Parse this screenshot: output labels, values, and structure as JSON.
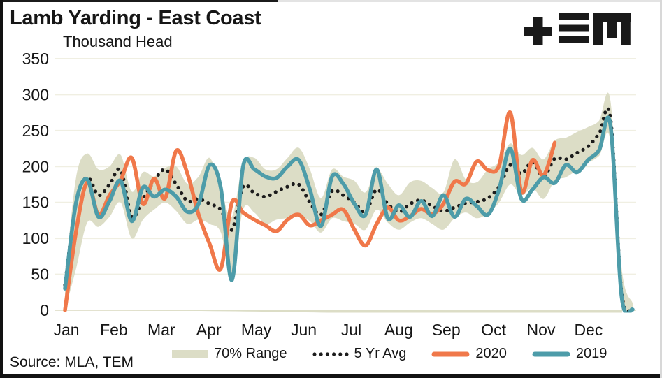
{
  "header": {
    "title": "Lamb Yarding - East Coast"
  },
  "logo": {
    "name": "TEM logo"
  },
  "source": {
    "label": "Source: MLA, TEM"
  },
  "legend": {
    "items": [
      {
        "id": "range",
        "label": "70% Range"
      },
      {
        "id": "avg",
        "label": "5 Yr Avg"
      },
      {
        "id": "y2020",
        "label": "2020"
      },
      {
        "id": "y2019",
        "label": "2019"
      }
    ]
  },
  "colors": {
    "band": "#dcddc6",
    "avg": "#1c1c1c",
    "y2020": "#f0784a",
    "y2019": "#4d9ca9",
    "grid": "#f0efe2",
    "axis_line": "#e4e3d0",
    "text": "#161616",
    "background": "#ffffff"
  },
  "chart_data": {
    "type": "line",
    "title": "Lamb Yarding - East Coast",
    "ylabel": "Thousand Head",
    "xlabel": "",
    "ylim": [
      0,
      350
    ],
    "y_ticks": [
      0,
      50,
      100,
      150,
      200,
      250,
      300,
      350
    ],
    "x_ticks": [
      "Jan",
      "Feb",
      "Mar",
      "Apr",
      "May",
      "Jun",
      "Jul",
      "Aug",
      "Sep",
      "Oct",
      "Nov",
      "Dec"
    ],
    "x_unit": "week",
    "weeks": 52,
    "grid": "horizontal",
    "legend_position": "bottom",
    "series": [
      {
        "name": "70% Range",
        "type": "band",
        "high": [
          42,
          185,
          218,
          196,
          200,
          216,
          165,
          192,
          186,
          198,
          200,
          176,
          186,
          212,
          168,
          130,
          205,
          212,
          196,
          196,
          212,
          226,
          196,
          156,
          196,
          186,
          180,
          164,
          196,
          176,
          160,
          178,
          180,
          170,
          164,
          210,
          182,
          178,
          196,
          206,
          232,
          216,
          226,
          210,
          236,
          240,
          248,
          255,
          264,
          292,
          60,
          10
        ],
        "low": [
          0,
          58,
          122,
          116,
          130,
          150,
          100,
          126,
          140,
          150,
          138,
          120,
          126,
          120,
          108,
          46,
          140,
          136,
          120,
          126,
          128,
          130,
          124,
          108,
          128,
          124,
          120,
          112,
          140,
          122,
          112,
          122,
          128,
          120,
          112,
          128,
          136,
          128,
          135,
          150,
          175,
          160,
          170,
          155,
          180,
          185,
          195,
          205,
          215,
          235,
          5,
          0
        ]
      },
      {
        "name": "5 Yr Avg",
        "type": "dotted-line",
        "values": [
          35,
          150,
          185,
          160,
          175,
          195,
          130,
          155,
          180,
          196,
          175,
          152,
          155,
          148,
          140,
          112,
          172,
          163,
          158,
          165,
          172,
          175,
          150,
          133,
          166,
          160,
          150,
          137,
          168,
          148,
          137,
          148,
          153,
          145,
          138,
          143,
          149,
          151,
          156,
          172,
          202,
          190,
          206,
          186,
          211,
          210,
          219,
          228,
          246,
          268,
          25,
          2
        ]
      },
      {
        "name": "2020",
        "type": "line",
        "values": [
          0,
          110,
          178,
          133,
          160,
          181,
          212,
          148,
          183,
          156,
          222,
          190,
          133,
          92,
          58,
          150,
          136,
          126,
          118,
          110,
          126,
          133,
          118,
          125,
          133,
          140,
          112,
          90,
          120,
          143,
          125,
          131,
          141,
          134,
          148,
          179,
          176,
          207,
          195,
          201,
          275,
          165,
          209,
          188,
          233,
          null,
          null,
          null,
          null,
          null,
          null,
          null
        ]
      },
      {
        "name": "2019",
        "type": "line",
        "values": [
          30,
          150,
          182,
          130,
          152,
          180,
          124,
          171,
          158,
          168,
          158,
          137,
          148,
          202,
          170,
          42,
          200,
          196,
          186,
          184,
          200,
          209,
          168,
          117,
          186,
          176,
          148,
          133,
          196,
          128,
          146,
          130,
          152,
          131,
          160,
          130,
          155,
          145,
          133,
          168,
          225,
          155,
          168,
          185,
          177,
          202,
          192,
          209,
          223,
          258,
          20,
          1
        ]
      }
    ]
  }
}
